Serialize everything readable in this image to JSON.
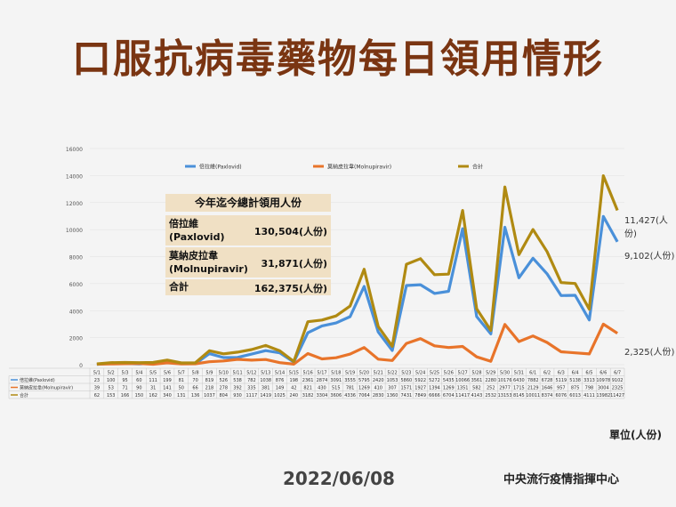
{
  "title": "口服抗病毒藥物每日領用情形",
  "date": "2022/06/08",
  "organization": "中央流行疫情指揮中心",
  "unit_label": "單位(人份)",
  "summary_table": {
    "header": "今年迄今總計領用人份",
    "rows": [
      {
        "name_line1": "倍拉維",
        "name_line2": "(Paxlovid)",
        "value": "130,504(人份)"
      },
      {
        "name_line1": "莫納皮拉韋",
        "name_line2": "(Molnupiravir)",
        "value": "31,871(人份)"
      },
      {
        "name_line1": "合計",
        "name_line2": "",
        "value": "162,375(人份)"
      }
    ]
  },
  "end_labels": {
    "total": "11,427(人份)",
    "paxlovid": "9,102(人份)",
    "molnupiravir": "2,325(人份)"
  },
  "chart_data": {
    "type": "line",
    "x": [
      "5/1",
      "5/2",
      "5/3",
      "5/4",
      "5/5",
      "5/6",
      "5/7",
      "5/8",
      "5/9",
      "5/10",
      "5/11",
      "5/12",
      "5/13",
      "5/14",
      "5/15",
      "5/16",
      "5/17",
      "5/18",
      "5/19",
      "5/20",
      "5/21",
      "5/22",
      "5/23",
      "5/24",
      "5/25",
      "5/26",
      "5/27",
      "5/28",
      "5/29",
      "5/30",
      "5/31",
      "6/1",
      "6/2",
      "6/3",
      "6/4",
      "6/5",
      "6/6",
      "6/7"
    ],
    "ylim": [
      0,
      16000
    ],
    "yticks": [
      0,
      2000,
      4000,
      6000,
      8000,
      10000,
      12000,
      14000,
      16000
    ],
    "series": [
      {
        "name": "倍拉維(Paxlovid)",
        "color": "#4a90d9",
        "values": [
          23,
          100,
          95,
          60,
          111,
          199,
          81,
          70,
          819,
          526,
          538,
          782,
          1038,
          876,
          198,
          2361,
          2874,
          3091,
          3555,
          5795,
          2420,
          1053,
          5860,
          5922,
          5272,
          5435,
          10066,
          3561,
          2280,
          10176,
          6430,
          7882,
          6728,
          5119,
          5138,
          3313,
          10978,
          9102
        ]
      },
      {
        "name": "莫納皮拉韋(Molnupiravir)",
        "color": "#e8742a",
        "values": [
          39,
          53,
          71,
          90,
          31,
          141,
          50,
          66,
          218,
          278,
          392,
          335,
          381,
          149,
          42,
          821,
          430,
          515,
          781,
          1269,
          410,
          307,
          1571,
          1927,
          1394,
          1269,
          1351,
          582,
          252,
          2977,
          1715,
          2129,
          1646,
          957,
          875,
          798,
          3004,
          2325
        ]
      },
      {
        "name": "合計",
        "color": "#b08a12",
        "values": [
          62,
          153,
          166,
          150,
          162,
          340,
          131,
          136,
          1037,
          804,
          930,
          1117,
          1419,
          1025,
          240,
          3182,
          3304,
          3606,
          4336,
          7064,
          2830,
          1360,
          7431,
          7849,
          6666,
          6704,
          11417,
          4143,
          2532,
          13153,
          8145,
          10011,
          8374,
          6076,
          6013,
          4111,
          13982,
          11427
        ]
      }
    ]
  }
}
